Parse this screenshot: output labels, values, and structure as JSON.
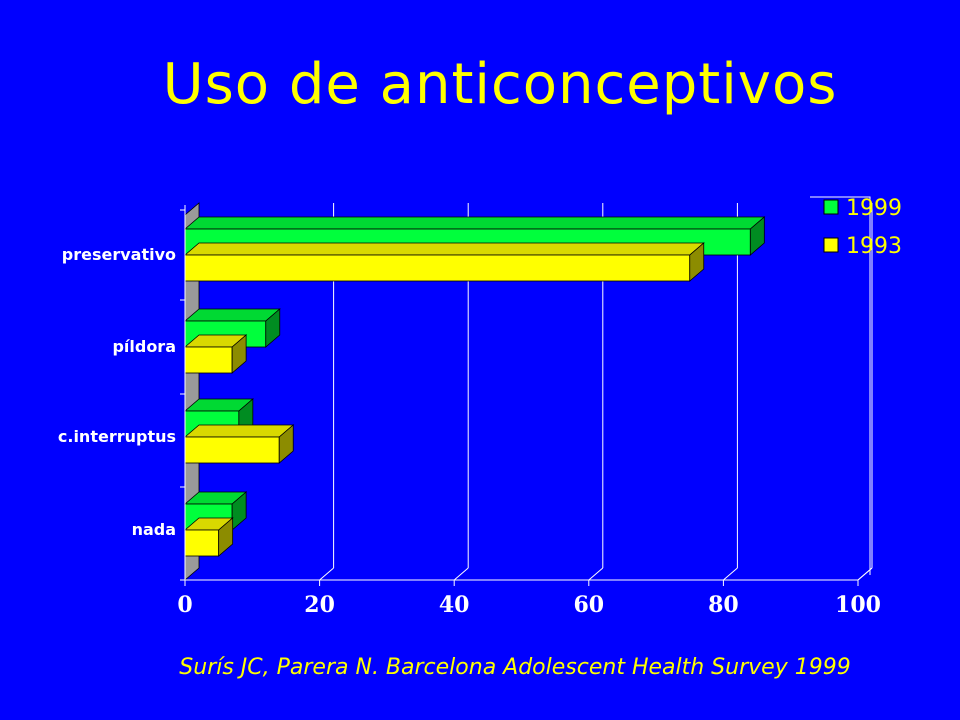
{
  "slide": {
    "title": "Uso de anticonceptivos",
    "citation": "Surís JC, Parera N. Barcelona Adolescent Health Survey 1999"
  },
  "colors": {
    "background": "#0000ff",
    "title": "#ffff00",
    "series_1999": "#00ff3c",
    "series_1993": "#ffff00"
  },
  "chart_data": {
    "type": "bar",
    "orientation": "horizontal",
    "style": "3d",
    "categories": [
      "preservativo",
      "píldora",
      "c.interruptus",
      "nada"
    ],
    "series": [
      {
        "name": "1999",
        "values": [
          84,
          12,
          8,
          7
        ]
      },
      {
        "name": "1993",
        "values": [
          75,
          7,
          14,
          5
        ]
      }
    ],
    "xlim": [
      0,
      100
    ],
    "xticks": [
      "0",
      "20",
      "40",
      "60",
      "80",
      "100"
    ],
    "grid": "vertical",
    "legend_position": "top-right"
  }
}
